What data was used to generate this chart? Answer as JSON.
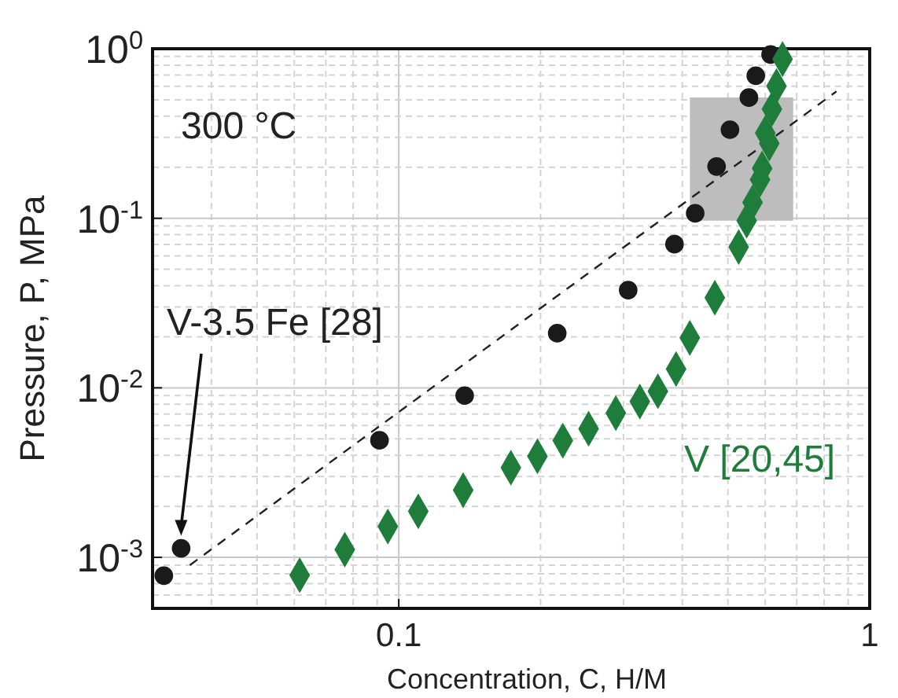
{
  "chart_data": {
    "type": "scatter",
    "xlabel": "Concentration, C, H/M",
    "ylabel": "Pressure, P, MPa",
    "log": "xy",
    "grid": true,
    "xlim": [
      0.03,
      1
    ],
    "xticks": [
      0.1,
      1
    ],
    "ylim": [
      0.0005,
      1
    ],
    "yticks": [
      {
        "value": 0.001,
        "label": "10$^{-3}$"
      },
      {
        "value": 0.01,
        "label": "10$^{-2}$"
      },
      {
        "value": 0.1,
        "label": "10$^{-1}$"
      },
      {
        "value": 1,
        "label": "10$^{0}$"
      }
    ],
    "annotations": [
      "300 °C"
    ],
    "series": [
      {
        "type": "area",
        "color": "#bdbdbd",
        "x": [
          0.42,
          0.68
        ],
        "values": [
          null,
          null
        ],
        "lower": [
          0.1,
          0.1
        ],
        "upper": [
          0.5,
          0.5
        ]
      },
      {
        "type": "line",
        "color": "#222222",
        "line_style": "dashed",
        "marker": "none",
        "x": [
          0.036,
          0.85
        ],
        "values": [
          0.0009,
          0.56
        ]
      },
      {
        "name": "V-3.5 Fe [28]",
        "color": "#1a1a1a",
        "marker": "circle",
        "x": [
          0.0317,
          0.0345,
          0.091,
          0.138,
          0.217,
          0.307,
          0.385,
          0.426,
          0.473,
          0.505,
          0.554,
          0.573,
          0.616
        ],
        "values": [
          0.00078,
          0.00113,
          0.0049,
          0.009,
          0.021,
          0.0377,
          0.0703,
          0.107,
          0.202,
          0.333,
          0.515,
          0.693,
          0.925
        ]
      },
      {
        "name": "V [20,45]",
        "color": "#1e7d3a",
        "marker": "diamond",
        "x": [
          0.0616,
          0.0768,
          0.0948,
          0.11,
          0.137,
          0.173,
          0.197,
          0.223,
          0.253,
          0.289,
          0.325,
          0.355,
          0.388,
          0.415,
          0.469,
          0.527,
          0.548,
          0.564,
          0.585,
          0.591,
          0.612,
          0.6,
          0.62,
          0.634,
          0.653
        ],
        "values": [
          0.000785,
          0.00111,
          0.00152,
          0.00187,
          0.00249,
          0.00338,
          0.00395,
          0.00488,
          0.00574,
          0.00709,
          0.0083,
          0.00954,
          0.0129,
          0.0197,
          0.034,
          0.0677,
          0.0969,
          0.124,
          0.169,
          0.197,
          0.276,
          0.318,
          0.441,
          0.602,
          0.869
        ]
      }
    ]
  }
}
